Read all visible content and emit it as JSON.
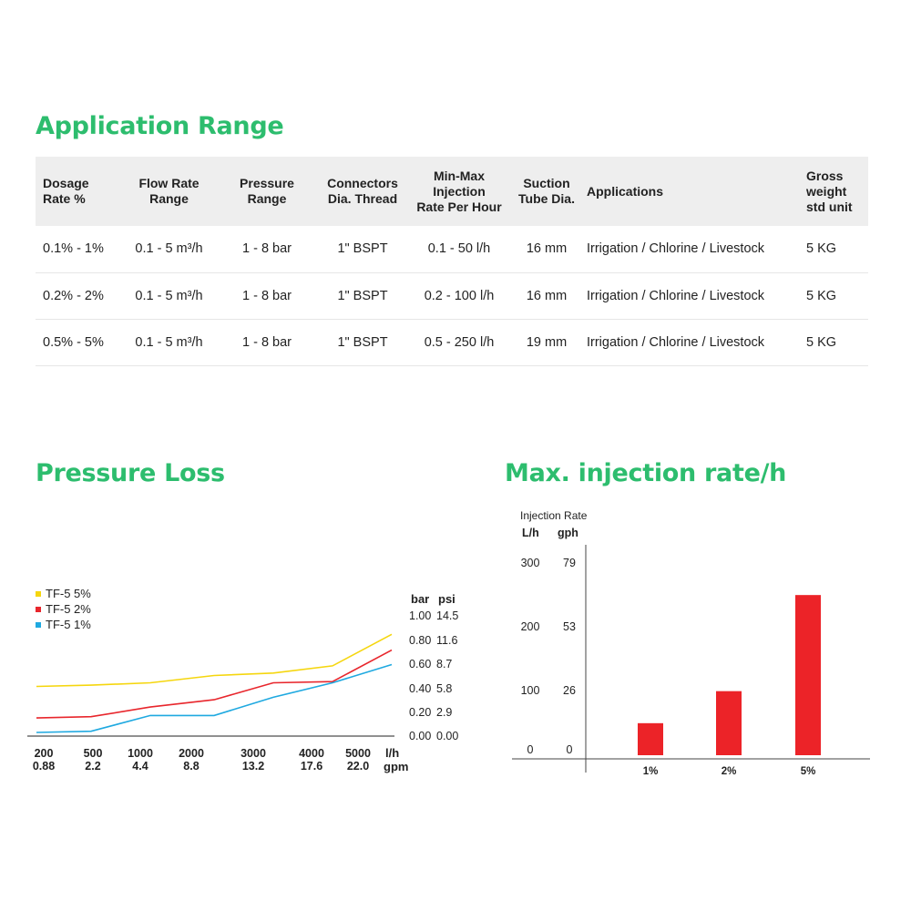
{
  "application_range": {
    "title": "Application Range",
    "headers": [
      "Dosage\nRate %",
      "Flow Rate\nRange",
      "Pressure\nRange",
      "Connectors\nDia. Thread",
      "Min-Max\nInjection\nRate Per Hour",
      "Suction\nTube Dia.",
      "Applications",
      "Gross\nweight\nstd unit"
    ],
    "rows": [
      [
        "0.1% - 1%",
        "0.1 - 5 m³/h",
        "1 - 8 bar",
        "1\" BSPT",
        "0.1 - 50 l/h",
        "16 mm",
        "Irrigation / Chlorine / Livestock",
        "5 KG"
      ],
      [
        "0.2% - 2%",
        "0.1 - 5 m³/h",
        "1 - 8 bar",
        "1\" BSPT",
        "0.2 - 100 l/h",
        "16 mm",
        "Irrigation / Chlorine / Livestock",
        "5 KG"
      ],
      [
        "0.5% - 5%",
        "0.1 - 5 m³/h",
        "1 - 8 bar",
        "1\" BSPT",
        "0.5 - 250 l/h",
        "19 mm",
        "Irrigation / Chlorine / Livestock",
        "5 KG"
      ]
    ]
  },
  "pressure_loss": {
    "title": "Pressure Loss"
  },
  "max_injection": {
    "title": "Max. injection rate/h"
  },
  "colors": {
    "accent": "#2dbd6e",
    "tf5_5": "#f5d60e",
    "tf5_2": "#e8262c",
    "tf5_1": "#1fa9e0",
    "bar": "#ec2328",
    "header_bg": "#eeeeee"
  },
  "chart_data": [
    {
      "type": "line",
      "title": "Pressure Loss",
      "x": [
        200,
        500,
        1000,
        2000,
        3000,
        4000,
        5000
      ],
      "x_tick_labels": [
        "200",
        "500",
        "1000",
        "2000",
        "3000",
        "4000",
        "5000"
      ],
      "x_secondary_tick_labels": [
        "0.88",
        "2.2",
        "4.4",
        "8.8",
        "13.2",
        "17.6",
        "22.0"
      ],
      "x_unit": "l/h",
      "x_secondary_unit": "gpm",
      "y_unit": "bar",
      "y_secondary_unit": "psi",
      "y_tick_labels": [
        "0.00",
        "0.20",
        "0.40",
        "0.60",
        "0.80",
        "1.00"
      ],
      "y_secondary_tick_labels": [
        "0.00",
        "2.9",
        "5.8",
        "8.7",
        "11.6",
        "14.5"
      ],
      "ylim": [
        0,
        1.0
      ],
      "legend_position": "top-left",
      "series": [
        {
          "name": "TF-5 5%",
          "color": "#f5d60e",
          "points": [
            [
              0,
              0.41
            ],
            [
              500,
              0.42
            ],
            [
              1000,
              0.44
            ],
            [
              2000,
              0.5
            ],
            [
              3000,
              0.52
            ],
            [
              4000,
              0.58
            ],
            [
              5000,
              0.84
            ]
          ]
        },
        {
          "name": "TF-5 2%",
          "color": "#e8262c",
          "points": [
            [
              0,
              0.15
            ],
            [
              500,
              0.16
            ],
            [
              1000,
              0.24
            ],
            [
              2000,
              0.3
            ],
            [
              3000,
              0.44
            ],
            [
              4000,
              0.45
            ],
            [
              5000,
              0.71
            ]
          ]
        },
        {
          "name": "TF-5 1%",
          "color": "#1fa9e0",
          "points": [
            [
              0,
              0.03
            ],
            [
              500,
              0.04
            ],
            [
              1000,
              0.17
            ],
            [
              2000,
              0.17
            ],
            [
              3000,
              0.32
            ],
            [
              4000,
              0.44
            ],
            [
              5000,
              0.59
            ]
          ]
        }
      ]
    },
    {
      "type": "bar",
      "title": "Max. injection rate/h",
      "ylabel": "Injection Rate",
      "y_unit": "L/h",
      "y_secondary_unit": "gph",
      "y_tick_labels": [
        "0",
        "100",
        "200",
        "300"
      ],
      "y_secondary_tick_labels": [
        "0",
        "26",
        "53",
        "79"
      ],
      "ylim": [
        0,
        300
      ],
      "categories": [
        "1%",
        "2%",
        "5%"
      ],
      "values": [
        50,
        100,
        250
      ],
      "color": "#ec2328"
    }
  ]
}
